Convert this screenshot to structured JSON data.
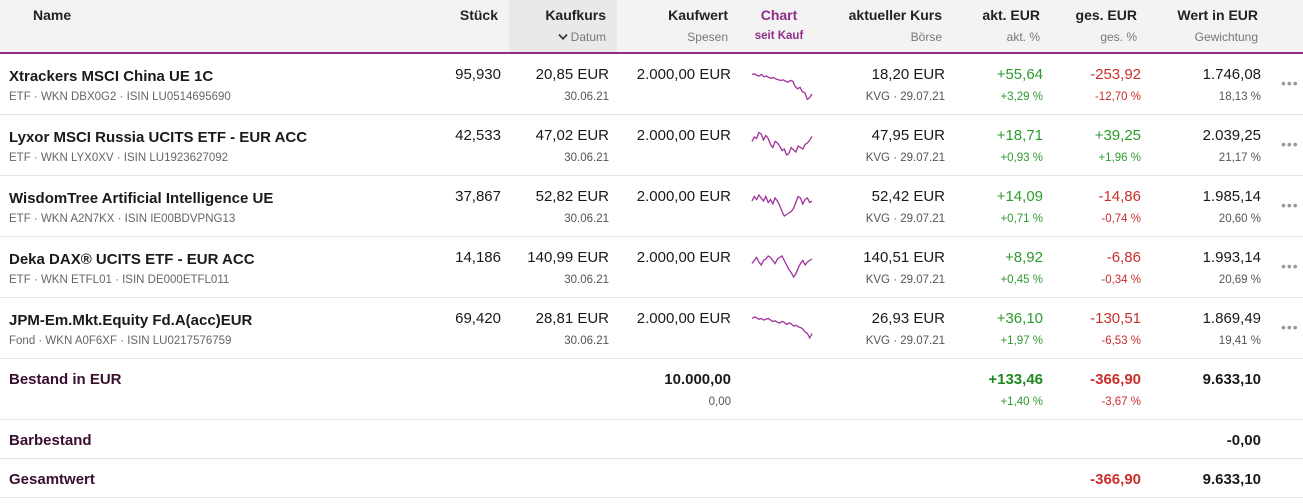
{
  "header": {
    "name": "Name",
    "stueck": "Stück",
    "kaufkurs": "Kaufkurs",
    "datum": "Datum",
    "kaufwert": "Kaufwert",
    "spesen": "Spesen",
    "chart": "Chart",
    "seit_kauf": "seit Kauf",
    "aktueller_kurs": "aktueller Kurs",
    "boerse": "Börse",
    "akt_eur": "akt. EUR",
    "akt_pct": "akt. %",
    "ges_eur": "ges. EUR",
    "ges_pct": "ges. %",
    "wert_eur": "Wert in EUR",
    "gewichtung": "Gewichtung",
    "sort_icon": "chevron-down-icon"
  },
  "rows": [
    {
      "name": "Xtrackers MSCI China UE 1C",
      "sub": "ETF · WKN DBX0G2 · ISIN LU0514695690",
      "stueck": "95,930",
      "kaufkurs": "20,85 EUR",
      "datum": "30.06.21",
      "kaufwert": "2.000,00 EUR",
      "kurs": "18,20 EUR",
      "boerse": "KVG · 29.07.21",
      "akt_eur": "+55,64",
      "akt_pct": "+3,29 %",
      "ges_eur": "-253,92",
      "ges_pct": "-12,70 %",
      "wert": "1.746,08",
      "gewichtung": "18,13 %",
      "spark": [
        14,
        13,
        15,
        16,
        14,
        17,
        16,
        18,
        19,
        18,
        20,
        21,
        22,
        21,
        23,
        24,
        22,
        23,
        30,
        33,
        31,
        37,
        38,
        47,
        45,
        40
      ]
    },
    {
      "name": "Lyxor MSCI Russia UCITS ETF - EUR ACC",
      "sub": "ETF · WKN LYX0XV · ISIN LU1923627092",
      "stueck": "42,533",
      "kaufkurs": "47,02 EUR",
      "datum": "30.06.21",
      "kaufwert": "2.000,00 EUR",
      "kurs": "47,95 EUR",
      "boerse": "KVG · 29.07.21",
      "akt_eur": "+18,71",
      "akt_pct": "+0,93 %",
      "ges_eur": "+39,25",
      "ges_pct": "+1,96 %",
      "wert": "2.039,25",
      "gewichtung": "21,17 %",
      "spark": [
        22,
        16,
        18,
        10,
        12,
        20,
        14,
        18,
        26,
        30,
        22,
        24,
        28,
        34,
        32,
        40,
        38,
        30,
        33,
        36,
        28,
        30,
        32,
        26,
        24,
        20,
        15
      ]
    },
    {
      "name": "WisdomTree Artificial Intelligence UE",
      "sub": "ETF · WKN A2N7KX · ISIN IE00BDVPNG13",
      "stueck": "37,867",
      "kaufkurs": "52,82 EUR",
      "datum": "30.06.21",
      "kaufwert": "2.000,00 EUR",
      "kurs": "52,42 EUR",
      "boerse": "KVG · 29.07.21",
      "akt_eur": "+14,09",
      "akt_pct": "+0,71 %",
      "ges_eur": "-14,86",
      "ges_pct": "-0,74 %",
      "wert": "1.985,14",
      "gewichtung": "20,60 %",
      "spark": [
        20,
        14,
        18,
        12,
        16,
        20,
        14,
        22,
        18,
        24,
        16,
        20,
        26,
        34,
        40,
        38,
        36,
        34,
        30,
        22,
        14,
        16,
        24,
        18,
        16,
        22,
        20
      ]
    },
    {
      "name": "Deka DAX® UCITS ETF - EUR ACC",
      "sub": "ETF · WKN ETFL01 · ISIN DE000ETFL011",
      "stueck": "14,186",
      "kaufkurs": "140,99 EUR",
      "datum": "30.06.21",
      "kaufwert": "2.000,00 EUR",
      "kurs": "140,51 EUR",
      "boerse": "KVG · 29.07.21",
      "akt_eur": "+8,92",
      "akt_pct": "+0,45 %",
      "ges_eur": "-6,86",
      "ges_pct": "-0,34 %",
      "wert": "1.993,14",
      "gewichtung": "20,69 %",
      "spark": [
        22,
        18,
        14,
        20,
        24,
        18,
        16,
        12,
        14,
        18,
        22,
        16,
        14,
        12,
        18,
        24,
        30,
        34,
        40,
        36,
        28,
        22,
        18,
        24,
        20,
        18,
        16
      ]
    },
    {
      "name": "JPM-Em.Mkt.Equity Fd.A(acc)EUR",
      "sub": "Fond · WKN A0F6XF · ISIN LU0217576759",
      "stueck": "69,420",
      "kaufkurs": "28,81 EUR",
      "datum": "30.06.21",
      "kaufwert": "2.000,00 EUR",
      "kurs": "26,93 EUR",
      "boerse": "KVG · 29.07.21",
      "akt_eur": "+36,10",
      "akt_pct": "+1,97 %",
      "ges_eur": "-130,51",
      "ges_pct": "-6,53 %",
      "wert": "1.869,49",
      "gewichtung": "19,41 %",
      "spark": [
        14,
        12,
        13,
        15,
        14,
        16,
        15,
        14,
        16,
        18,
        17,
        19,
        20,
        18,
        19,
        22,
        20,
        21,
        24,
        23,
        25,
        26,
        28,
        32,
        34,
        40,
        34
      ]
    }
  ],
  "bestand": {
    "label": "Bestand in EUR",
    "kaufwert": "10.000,00",
    "spesen": "0,00",
    "akt_eur": "+133,46",
    "akt_pct": "+1,40 %",
    "ges_eur": "-366,90",
    "ges_pct": "-3,67 %",
    "wert": "9.633,10"
  },
  "barbestand": {
    "label": "Barbestand",
    "wert": "-0,00"
  },
  "gesamtwert": {
    "label": "Gesamtwert",
    "ges_eur": "-366,90",
    "wert": "9.633,10"
  },
  "menu_glyph": "•••",
  "colors": {
    "accent": "#8e2c8a",
    "positive": "#2e9a2e",
    "negative": "#c9302c",
    "sparkline": "#a0329a"
  }
}
